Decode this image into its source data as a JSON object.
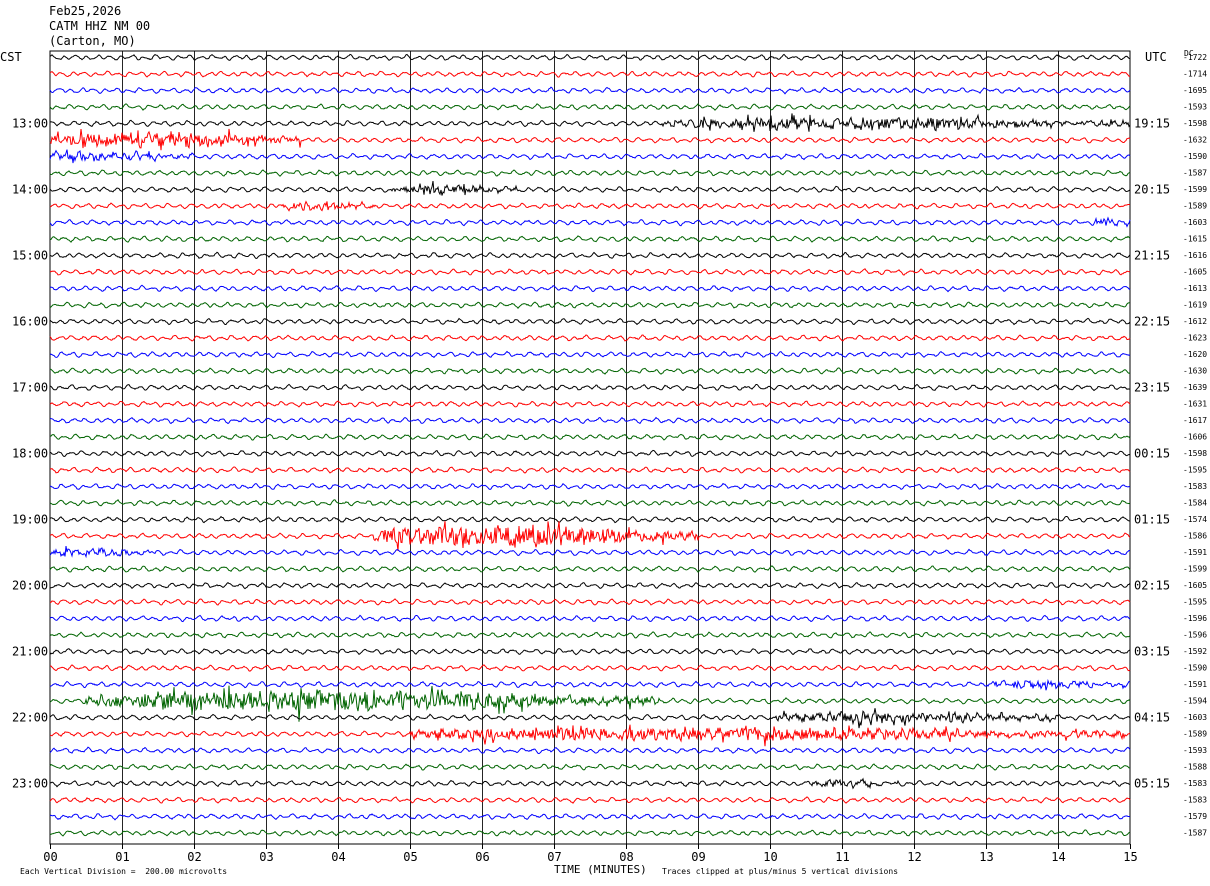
{
  "header": {
    "date": "Feb25,2026",
    "station": "CATM HHZ NM 00",
    "location": "(Carton, MO)"
  },
  "left_axis_label": "CST",
  "right_axis_label": "UTC",
  "dc_label": "DC",
  "footer": {
    "scale_note": "Each Vertical Division =  200.00 microvolts",
    "xlabel": "TIME (MINUTES)",
    "clip_note": "Traces clipped at plus/minus 5 vertical divisions"
  },
  "chart_data": {
    "type": "line",
    "title": "",
    "xlabel": "TIME (MINUTES)",
    "x_ticks": [
      "00",
      "01",
      "02",
      "03",
      "04",
      "05",
      "06",
      "07",
      "08",
      "09",
      "10",
      "11",
      "12",
      "13",
      "14",
      "15"
    ],
    "xlim": [
      0,
      15
    ],
    "row_minutes": 15,
    "trace_colors": [
      "#000000",
      "#ff0000",
      "#0000ff",
      "#006400"
    ],
    "left_hour_labels": [
      "13:00",
      "14:00",
      "15:00",
      "16:00",
      "17:00",
      "18:00",
      "19:00",
      "20:00",
      "21:00",
      "22:00",
      "23:00"
    ],
    "right_hour_labels": [
      "19:15",
      "20:15",
      "21:15",
      "22:15",
      "23:15",
      "00:15",
      "01:15",
      "02:15",
      "03:15",
      "04:15",
      "05:15"
    ],
    "dc_offsets": [
      "-1722",
      "-1714",
      "-1695",
      "-1593",
      "-1598",
      "-1632",
      "-1590",
      "-1587",
      "-1599",
      "-1589",
      "-1603",
      "-1615",
      "-1616",
      "-1605",
      "-1613",
      "-1619",
      "-1612",
      "-1623",
      "-1620",
      "-1630",
      "-1639",
      "-1631",
      "-1617",
      "-1606",
      "-1598",
      "-1595",
      "-1583",
      "-1584",
      "-1574",
      "-1586",
      "-1591",
      "-1599",
      "-1605",
      "-1595",
      "-1596",
      "-1596",
      "-1592",
      "-1590",
      "-1591",
      "-1594",
      "-1603",
      "-1589",
      "-1593",
      "-1588",
      "-1583",
      "-1583",
      "-1579",
      "-1587"
    ],
    "events": [
      {
        "row": 4,
        "start_min": 8.5,
        "end_min": 15.0,
        "amplitude": 2.2
      },
      {
        "row": 5,
        "start_min": 0.0,
        "end_min": 3.5,
        "amplitude": 3.0
      },
      {
        "row": 6,
        "start_min": 0.0,
        "end_min": 2.0,
        "amplitude": 1.6
      },
      {
        "row": 8,
        "start_min": 4.7,
        "end_min": 6.5,
        "amplitude": 1.8
      },
      {
        "row": 9,
        "start_min": 3.2,
        "end_min": 4.5,
        "amplitude": 1.6
      },
      {
        "row": 10,
        "start_min": 14.5,
        "end_min": 15.0,
        "amplitude": 1.5
      },
      {
        "row": 29,
        "start_min": 4.5,
        "end_min": 9.0,
        "amplitude": 4.5
      },
      {
        "row": 30,
        "start_min": 0.0,
        "end_min": 1.5,
        "amplitude": 1.3
      },
      {
        "row": 38,
        "start_min": 13.0,
        "end_min": 15.0,
        "amplitude": 1.3
      },
      {
        "row": 39,
        "start_min": 0.5,
        "end_min": 8.5,
        "amplitude": 4.2
      },
      {
        "row": 40,
        "start_min": 10.0,
        "end_min": 14.0,
        "amplitude": 2.0
      },
      {
        "row": 41,
        "start_min": 5.0,
        "end_min": 15.0,
        "amplitude": 2.8
      },
      {
        "row": 44,
        "start_min": 10.5,
        "end_min": 11.8,
        "amplitude": 1.2
      }
    ]
  }
}
